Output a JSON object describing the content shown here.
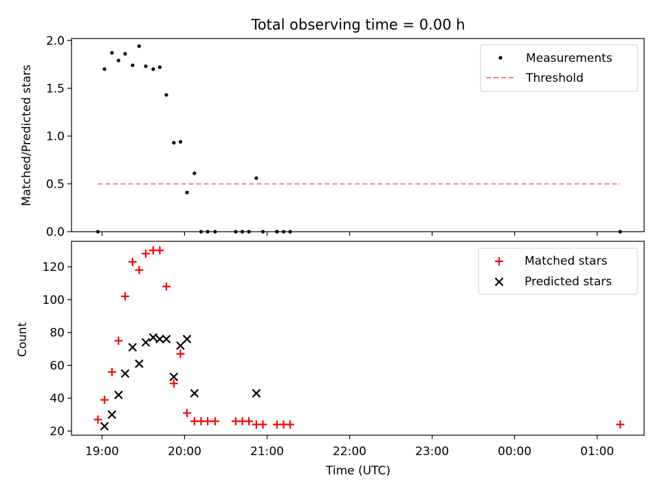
{
  "chart_data": {
    "title": "Total observing time = 0.00 h",
    "xlabel": "Time (UTC)",
    "x_ticks": [
      "19:00",
      "20:00",
      "21:00",
      "22:00",
      "23:00",
      "00:00",
      "01:00"
    ],
    "x_tick_hours": [
      19,
      20,
      21,
      22,
      23,
      24,
      25
    ],
    "xlim_hours": [
      18.63,
      25.57
    ],
    "colors": {
      "measurement": "#000000",
      "threshold": "#ff7f7f",
      "matched": "#ff0000",
      "predicted": "#000000"
    },
    "panels": [
      {
        "type": "scatter",
        "ylabel": "Matched/Predicted stars",
        "ylim": [
          0,
          2.02
        ],
        "y_ticks": [
          0.0,
          0.5,
          1.0,
          1.5,
          2.0
        ],
        "y_tick_labels": [
          "0.0",
          "0.5",
          "1.0",
          "1.5",
          "2.0"
        ],
        "legend": {
          "position": "top-right",
          "entries": [
            "Measurements",
            "Threshold"
          ]
        },
        "series": [
          {
            "name": "Measurements",
            "marker": "dot",
            "x": [
              18.95,
              19.03,
              19.12,
              19.2,
              19.28,
              19.37,
              19.45,
              19.53,
              19.62,
              19.7,
              19.78,
              19.87,
              19.95,
              20.03,
              20.12,
              20.2,
              20.28,
              20.37,
              20.62,
              20.7,
              20.78,
              20.87,
              20.95,
              21.12,
              21.2,
              21.28,
              25.28
            ],
            "y": [
              0.0,
              1.7,
              1.87,
              1.79,
              1.86,
              1.74,
              1.94,
              1.73,
              1.7,
              1.72,
              1.43,
              0.93,
              0.94,
              0.41,
              0.61,
              0.0,
              0.0,
              0.0,
              0.0,
              0.0,
              0.0,
              0.56,
              0.0,
              0.0,
              0.0,
              0.0,
              0.0
            ]
          },
          {
            "name": "Threshold",
            "marker": "dashed-line",
            "x": [
              18.95,
              25.28
            ],
            "y": [
              0.5,
              0.5
            ]
          }
        ]
      },
      {
        "type": "scatter",
        "ylabel": "Count",
        "ylim": [
          17.5,
          135.5
        ],
        "y_ticks": [
          20,
          40,
          60,
          80,
          100,
          120
        ],
        "y_tick_labels": [
          "20",
          "40",
          "60",
          "80",
          "100",
          "120"
        ],
        "legend": {
          "position": "top-right",
          "entries": [
            "Matched stars",
            "Predicted stars"
          ]
        },
        "series": [
          {
            "name": "Matched stars",
            "marker": "plus",
            "x": [
              18.95,
              19.03,
              19.12,
              19.2,
              19.28,
              19.37,
              19.45,
              19.53,
              19.62,
              19.7,
              19.78,
              19.87,
              19.95,
              20.03,
              20.12,
              20.2,
              20.28,
              20.37,
              20.62,
              20.7,
              20.78,
              20.87,
              20.95,
              21.12,
              21.2,
              21.28,
              25.28
            ],
            "y": [
              27,
              39,
              56,
              75,
              102,
              123,
              118,
              128,
              130,
              130,
              108,
              49,
              67,
              31,
              26,
              26,
              26,
              26,
              26,
              26,
              26,
              24,
              24,
              24,
              24,
              24,
              24
            ]
          },
          {
            "name": "Predicted stars",
            "marker": "x",
            "x": [
              19.03,
              19.12,
              19.2,
              19.28,
              19.37,
              19.45,
              19.53,
              19.62,
              19.7,
              19.78,
              19.87,
              19.95,
              20.03,
              20.12,
              20.87
            ],
            "y": [
              23,
              30,
              42,
              55,
              71,
              61,
              74,
              77,
              76,
              76,
              53,
              72,
              76,
              43,
              43
            ]
          }
        ]
      }
    ]
  }
}
